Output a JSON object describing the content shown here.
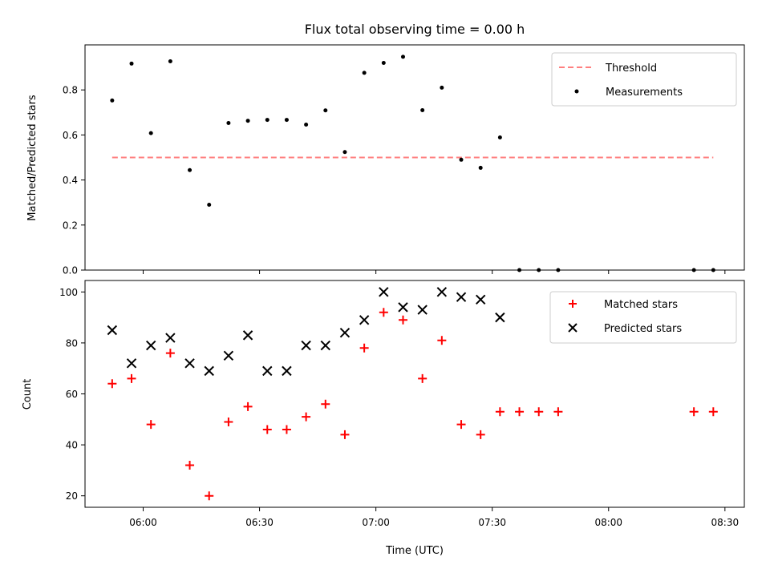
{
  "chart_data": [
    {
      "type": "scatter",
      "title": "Flux total observing time = 0.00 h",
      "xlabel": "",
      "ylabel": "Matched/Predicted stars",
      "xlim": [
        "05:45",
        "08:35"
      ],
      "ylim": [
        0,
        1.0
      ],
      "yticks": [
        0.0,
        0.2,
        0.4,
        0.6,
        0.8
      ],
      "ytick_labels": [
        "0.0",
        "0.2",
        "0.4",
        "0.6",
        "0.8"
      ],
      "legend_position": "top-right",
      "grid": false,
      "series": [
        {
          "name": "Threshold",
          "kind": "dashed-line",
          "color": "#ff7f7f",
          "x": [
            "05:52",
            "08:27"
          ],
          "y": [
            0.5,
            0.5
          ]
        },
        {
          "name": "Measurements",
          "kind": "dot",
          "color": "#000000",
          "x": [
            "05:52",
            "05:57",
            "06:02",
            "06:07",
            "06:12",
            "06:17",
            "06:22",
            "06:27",
            "06:32",
            "06:37",
            "06:42",
            "06:47",
            "06:52",
            "06:57",
            "07:02",
            "07:07",
            "07:12",
            "07:17",
            "07:22",
            "07:27",
            "07:32",
            "07:37",
            "07:42",
            "07:47",
            "08:22",
            "08:27"
          ],
          "y": [
            0.753,
            0.917,
            0.608,
            0.927,
            0.444,
            0.29,
            0.653,
            0.663,
            0.667,
            0.667,
            0.646,
            0.709,
            0.524,
            0.876,
            0.92,
            0.947,
            0.71,
            0.81,
            0.49,
            0.454,
            0.589,
            0,
            0,
            0,
            0,
            0
          ]
        }
      ]
    },
    {
      "type": "scatter",
      "title": "",
      "xlabel": "Time (UTC)",
      "ylabel": "Count",
      "xlim": [
        "05:45",
        "08:35"
      ],
      "xticks": [
        "06:00",
        "06:30",
        "07:00",
        "07:30",
        "08:00",
        "08:30"
      ],
      "ylim": [
        15.5,
        104.5
      ],
      "yticks": [
        20,
        40,
        60,
        80,
        100
      ],
      "ytick_labels": [
        "20",
        "40",
        "60",
        "80",
        "100"
      ],
      "legend_position": "top-right",
      "grid": false,
      "series": [
        {
          "name": "Matched stars",
          "kind": "plus",
          "color": "#ff0000",
          "x": [
            "05:52",
            "05:57",
            "06:02",
            "06:07",
            "06:12",
            "06:17",
            "06:22",
            "06:27",
            "06:32",
            "06:37",
            "06:42",
            "06:47",
            "06:52",
            "06:57",
            "07:02",
            "07:07",
            "07:12",
            "07:17",
            "07:22",
            "07:27",
            "07:32",
            "07:37",
            "07:42",
            "07:47",
            "08:22",
            "08:27"
          ],
          "y": [
            64,
            66,
            48,
            76,
            32,
            20,
            49,
            55,
            46,
            46,
            51,
            56,
            44,
            78,
            92,
            89,
            66,
            81,
            48,
            44,
            53,
            53,
            53,
            53,
            53,
            53
          ]
        },
        {
          "name": "Predicted stars",
          "kind": "x",
          "color": "#000000",
          "x": [
            "05:52",
            "05:57",
            "06:02",
            "06:07",
            "06:12",
            "06:17",
            "06:22",
            "06:27",
            "06:32",
            "06:37",
            "06:42",
            "06:47",
            "06:52",
            "06:57",
            "07:02",
            "07:07",
            "07:12",
            "07:17",
            "07:22",
            "07:27",
            "07:32"
          ],
          "y": [
            85,
            72,
            79,
            82,
            72,
            69,
            75,
            83,
            69,
            69,
            79,
            79,
            84,
            89,
            100,
            94,
            93,
            100,
            98,
            97,
            90
          ]
        }
      ]
    }
  ]
}
